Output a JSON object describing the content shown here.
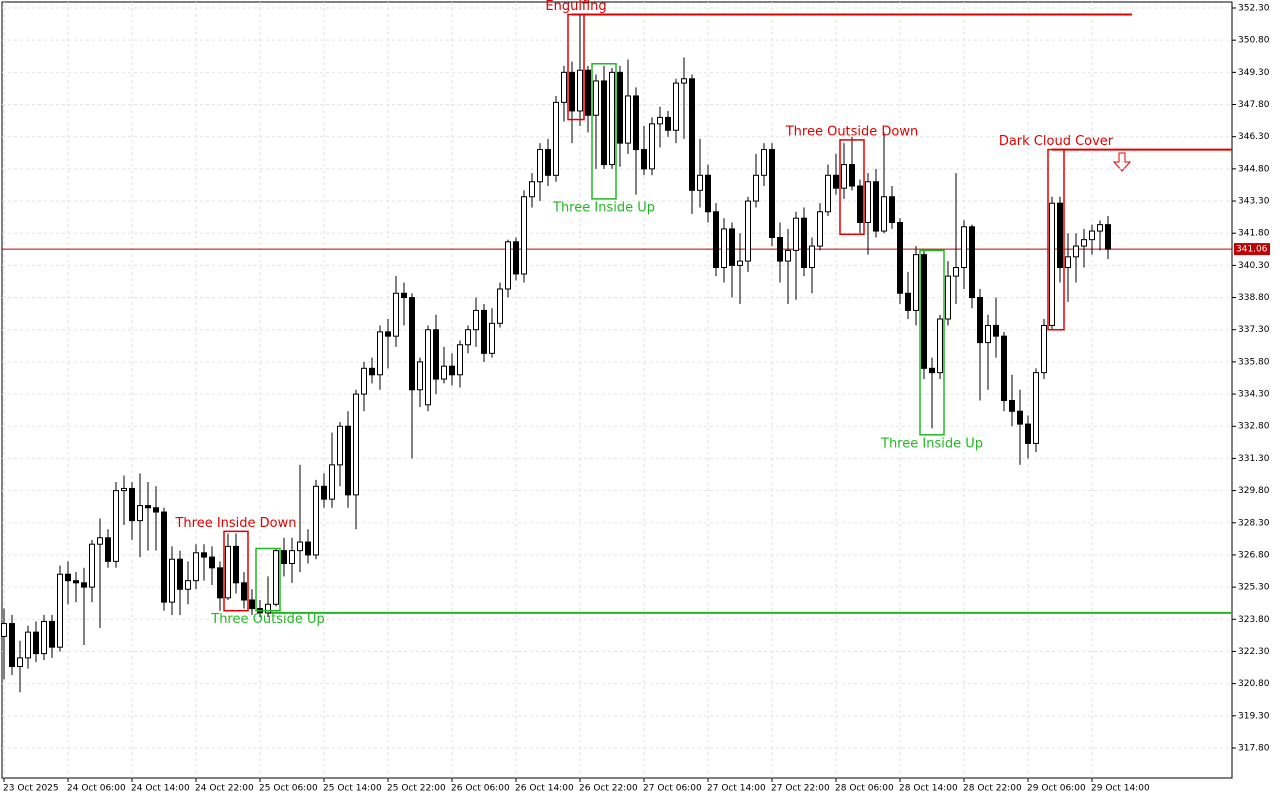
{
  "chart_data": {
    "type": "candlestick",
    "categories": [
      "23 Oct 2025",
      null,
      null,
      null,
      null,
      null,
      null,
      null,
      "24 Oct 06:00",
      null,
      null,
      null,
      null,
      null,
      null,
      null,
      "24 Oct 14:00",
      null,
      null,
      null,
      null,
      null,
      null,
      null,
      "24 Oct 22:00",
      null,
      null,
      null,
      null,
      null,
      null,
      null,
      "25 Oct 06:00",
      null,
      null,
      null,
      null,
      null,
      null,
      null,
      "25 Oct 14:00",
      null,
      null,
      null,
      null,
      null,
      null,
      null,
      "25 Oct 22:00",
      null,
      null,
      null,
      null,
      null,
      null,
      null,
      "26 Oct 06:00",
      null,
      null,
      null,
      null,
      null,
      null,
      null,
      "26 Oct 14:00",
      null,
      null,
      null,
      null,
      null,
      null,
      null,
      "26 Oct 22:00",
      null,
      null,
      null,
      null,
      null,
      null,
      null,
      "27 Oct 06:00",
      null,
      null,
      null,
      null,
      null,
      null,
      null,
      "27 Oct 14:00",
      null,
      null,
      null,
      null,
      null,
      null,
      null,
      "27 Oct 22:00",
      null,
      null,
      null,
      null,
      null,
      null,
      null,
      "28 Oct 06:00",
      null,
      null,
      null,
      null,
      null,
      null,
      null,
      "28 Oct 14:00",
      null,
      null,
      null,
      null,
      null,
      null,
      null,
      "28 Oct 22:00",
      null,
      null,
      null,
      null,
      null,
      null,
      null,
      "29 Oct 06:00",
      null,
      null,
      null,
      null,
      null,
      null,
      null,
      "29 Oct 14:00",
      null,
      null
    ],
    "open": [
      323.0,
      323.6,
      321.6,
      322.0,
      323.2,
      322.2,
      323.7,
      322.5,
      325.9,
      325.6,
      325.5,
      325.3,
      327.3,
      327.6,
      326.5,
      329.8,
      329.9,
      328.4,
      329.1,
      329.0,
      328.8,
      324.6,
      326.6,
      325.2,
      325.6,
      326.9,
      326.7,
      326.2,
      324.8,
      327.2,
      325.5,
      324.7,
      324.3,
      324.1,
      324.5,
      327.0,
      326.4,
      327.0,
      327.4,
      326.8,
      330.0,
      329.4,
      331.0,
      332.8,
      329.6,
      334.3,
      335.5,
      335.2,
      337.2,
      337.0,
      339.0,
      338.8,
      334.5,
      333.8,
      337.3,
      335.0,
      335.6,
      335.2,
      336.6,
      337.3,
      338.2,
      336.2,
      337.6,
      339.2,
      341.4,
      339.9,
      343.5,
      344.2,
      345.7,
      344.5,
      347.9,
      349.3,
      347.5,
      349.4,
      347.3,
      348.9,
      345.0,
      349.3,
      346.0,
      348.2,
      345.7,
      344.8,
      346.9,
      347.2,
      346.6,
      348.8,
      349.0,
      343.8,
      344.5,
      342.8,
      340.2,
      342.0,
      340.3,
      340.5,
      343.3,
      344.5,
      345.7,
      341.6,
      340.5,
      341.0,
      342.5,
      340.2,
      341.2,
      342.8,
      344.5,
      343.9,
      345.0,
      344.0,
      342.3,
      344.2,
      341.9,
      343.5,
      342.3,
      339.0,
      338.2,
      340.8,
      335.5,
      335.3,
      337.8,
      339.8,
      340.2,
      342.1,
      338.8,
      336.7,
      337.5,
      337.0,
      334.0,
      333.5,
      332.9,
      332.0,
      335.3,
      337.5,
      343.2,
      340.2,
      340.7,
      341.2,
      341.5,
      341.9,
      342.2
    ],
    "high": [
      324.3,
      324.0,
      322.8,
      323.5,
      323.7,
      324.0,
      324.0,
      326.3,
      326.5,
      326.0,
      326.2,
      327.5,
      328.5,
      328.0,
      330.2,
      330.5,
      330.2,
      330.6,
      330.2,
      330.0,
      329.0,
      327.2,
      327.0,
      326.5,
      327.3,
      327.3,
      327.2,
      326.5,
      327.8,
      327.8,
      326.0,
      325.2,
      324.7,
      325.8,
      327.1,
      327.6,
      327.6,
      331.0,
      328.0,
      330.3,
      330.6,
      332.5,
      333.0,
      333.5,
      334.5,
      335.8,
      336.0,
      337.5,
      337.8,
      339.8,
      339.5,
      339.0,
      336.0,
      337.5,
      338.0,
      336.5,
      336.2,
      336.8,
      337.5,
      338.8,
      338.5,
      338.3,
      339.5,
      341.5,
      341.6,
      343.8,
      344.6,
      346.0,
      346.2,
      348.2,
      349.6,
      349.8,
      352.0,
      349.6,
      349.2,
      349.6,
      349.5,
      349.6,
      349.9,
      348.6,
      346.8,
      347.2,
      347.7,
      347.5,
      349.0,
      350.0,
      349.2,
      346.2,
      345.0,
      343.2,
      342.5,
      342.3,
      341.8,
      343.5,
      345.5,
      346.0,
      346.0,
      342.3,
      342.0,
      342.8,
      343.0,
      341.6,
      343.2,
      345.0,
      345.5,
      346.0,
      346.3,
      344.3,
      344.6,
      344.8,
      346.5,
      344.0,
      342.5,
      340.0,
      341.2,
      341.0,
      336.0,
      338.0,
      340.5,
      344.6,
      342.4,
      342.2,
      339.2,
      338.0,
      338.8,
      337.2,
      335.2,
      334.5,
      333.3,
      335.5,
      337.8,
      343.5,
      343.5,
      341.8,
      341.8,
      342.0,
      342.2,
      342.4,
      342.6
    ],
    "low": [
      321.0,
      321.2,
      320.4,
      321.5,
      321.8,
      321.9,
      322.0,
      322.3,
      324.5,
      324.6,
      322.6,
      324.6,
      323.4,
      326.2,
      326.2,
      328.2,
      327.5,
      326.7,
      327.0,
      327.0,
      324.2,
      324.0,
      324.0,
      324.5,
      325.2,
      325.6,
      325.4,
      324.2,
      324.7,
      325.0,
      324.3,
      324.0,
      323.9,
      323.9,
      324.4,
      325.8,
      325.5,
      326.0,
      326.4,
      326.6,
      329.0,
      329.0,
      330.0,
      329.0,
      328.0,
      333.5,
      334.8,
      334.5,
      335.5,
      336.5,
      337.5,
      331.3,
      333.7,
      333.5,
      334.3,
      334.8,
      334.7,
      334.6,
      336.2,
      336.5,
      335.8,
      336.0,
      337.4,
      338.8,
      339.6,
      339.5,
      343.0,
      343.3,
      344.0,
      344.2,
      347.0,
      346.0,
      346.8,
      346.5,
      344.8,
      344.8,
      344.8,
      344.9,
      345.5,
      343.6,
      344.5,
      344.5,
      345.8,
      346.3,
      346.0,
      346.2,
      342.7,
      343.0,
      342.3,
      339.8,
      339.5,
      338.8,
      338.5,
      340.0,
      343.0,
      344.0,
      341.2,
      339.5,
      338.5,
      338.7,
      339.8,
      339.0,
      341.0,
      342.6,
      343.6,
      343.4,
      343.8,
      341.8,
      340.8,
      341.6,
      341.8,
      342.0,
      338.5,
      337.8,
      337.5,
      335.0,
      332.7,
      335.0,
      337.5,
      338.5,
      339.2,
      338.3,
      334.0,
      334.5,
      336.0,
      333.5,
      332.8,
      331.0,
      331.3,
      331.6,
      335.0,
      337.3,
      339.5,
      338.6,
      339.5,
      340.2,
      340.8,
      341.0,
      340.6
    ],
    "close": [
      323.6,
      321.6,
      322.0,
      323.2,
      322.2,
      323.7,
      322.5,
      325.9,
      325.6,
      325.5,
      325.3,
      327.3,
      327.6,
      326.5,
      329.8,
      329.9,
      328.4,
      329.1,
      329.0,
      328.8,
      324.6,
      326.6,
      325.2,
      325.6,
      326.9,
      326.7,
      326.2,
      324.8,
      327.2,
      325.5,
      324.7,
      324.3,
      324.1,
      324.5,
      327.0,
      326.4,
      327.0,
      327.4,
      326.8,
      330.0,
      329.4,
      331.0,
      332.8,
      329.6,
      334.3,
      335.5,
      335.2,
      337.2,
      337.0,
      339.0,
      338.8,
      334.5,
      335.8,
      337.3,
      335.0,
      335.6,
      335.2,
      336.6,
      337.3,
      338.2,
      336.2,
      337.6,
      339.2,
      341.4,
      339.9,
      343.5,
      344.2,
      345.7,
      344.5,
      347.9,
      349.3,
      347.5,
      349.4,
      347.3,
      348.9,
      345.0,
      349.3,
      346.0,
      348.2,
      345.7,
      344.8,
      346.9,
      347.2,
      346.6,
      348.8,
      349.0,
      343.8,
      344.5,
      342.8,
      340.2,
      342.0,
      340.3,
      340.5,
      343.3,
      344.5,
      345.7,
      341.6,
      340.5,
      341.0,
      342.5,
      340.2,
      341.2,
      342.8,
      344.5,
      343.9,
      345.0,
      344.0,
      342.3,
      344.2,
      341.9,
      343.5,
      342.3,
      339.0,
      338.2,
      340.8,
      335.5,
      335.3,
      337.8,
      339.8,
      340.2,
      342.1,
      338.8,
      336.7,
      337.5,
      337.0,
      334.0,
      333.5,
      332.9,
      332.0,
      335.3,
      337.5,
      343.2,
      340.2,
      340.7,
      341.2,
      341.5,
      341.9,
      342.2,
      341.06
    ],
    "up_color": "#ffffff",
    "down_color": "#000000",
    "edge_color": "#000000",
    "ylim": [
      316.4,
      352.58
    ],
    "yticks": [
      {
        "value": 352.3,
        "label": "352.30"
      },
      {
        "value": 350.8,
        "label": "350.80"
      },
      {
        "value": 349.3,
        "label": "349.30"
      },
      {
        "value": 347.8,
        "label": "347.80"
      },
      {
        "value": 346.3,
        "label": "346.30"
      },
      {
        "value": 344.8,
        "label": "344.80"
      },
      {
        "value": 343.3,
        "label": "343.30"
      },
      {
        "value": 341.8,
        "label": "341.80"
      },
      {
        "value": 340.3,
        "label": "340.30"
      },
      {
        "value": 338.8,
        "label": "338.80"
      },
      {
        "value": 337.3,
        "label": "337.30"
      },
      {
        "value": 335.8,
        "label": "335.80"
      },
      {
        "value": 334.3,
        "label": "334.30"
      },
      {
        "value": 332.8,
        "label": "332.80"
      },
      {
        "value": 331.3,
        "label": "331.30"
      },
      {
        "value": 329.8,
        "label": "329.80"
      },
      {
        "value": 328.3,
        "label": "328.30"
      },
      {
        "value": 326.8,
        "label": "326.80"
      },
      {
        "value": 325.3,
        "label": "325.30"
      },
      {
        "value": 323.8,
        "label": "323.80"
      },
      {
        "value": 322.3,
        "label": "322.30"
      },
      {
        "value": 320.8,
        "label": "320.80"
      },
      {
        "value": 319.3,
        "label": "319.30"
      },
      {
        "value": 317.8,
        "label": "317.80"
      }
    ],
    "grid": true,
    "last_price": 341.06,
    "last_price_color": "#c00000",
    "patterns": [
      {
        "label": "Engulfing",
        "color": "#e00000",
        "from": 71,
        "to": 72,
        "high": 352.0,
        "low": 347.1
      },
      {
        "label": "Three Inside Up",
        "color": "#22b822",
        "from": 74,
        "to": 76,
        "high": 349.7,
        "low": 343.4
      },
      {
        "label": "Three Inside Down",
        "color": "#e00000",
        "from": 28,
        "to": 30,
        "high": 327.9,
        "low": 324.2
      },
      {
        "label": "Three Outside Up",
        "color": "#22b822",
        "from": 32,
        "to": 34,
        "high": 327.1,
        "low": 324.2
      },
      {
        "label": "Three Outside Down",
        "color": "#e00000",
        "from": 105,
        "to": 107,
        "high": 346.15,
        "low": 341.75
      },
      {
        "label": "Three Inside Up",
        "color": "#22b822",
        "from": 115,
        "to": 117,
        "high": 341.0,
        "low": 332.4
      },
      {
        "label": "Dark Cloud Cover",
        "color": "#e00000",
        "from": 131,
        "to": 132,
        "high": 345.7,
        "low": 337.3
      }
    ],
    "levels": [
      {
        "value": 352.0,
        "color": "#e00000",
        "from": 71,
        "to": 141
      },
      {
        "value": 345.7,
        "color": "#e00000",
        "from": 131
      },
      {
        "value": 324.1,
        "color": "#22b822",
        "from": 33
      }
    ]
  }
}
